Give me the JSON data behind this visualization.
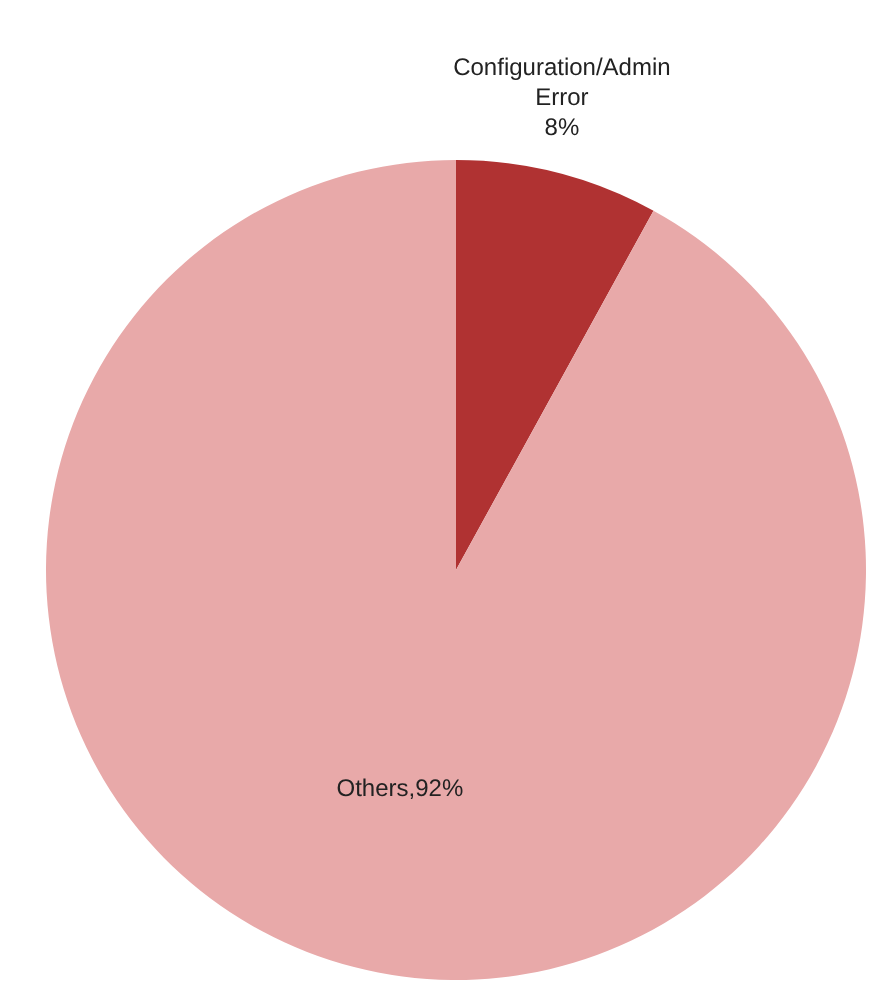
{
  "chart_data": {
    "type": "pie",
    "categories": [
      "Configuration/Admin Error",
      "Others"
    ],
    "values": [
      8,
      92
    ],
    "colors": [
      "#b03232",
      "#e8a9a9"
    ],
    "value_labels": [
      "8%",
      "92%"
    ]
  }
}
